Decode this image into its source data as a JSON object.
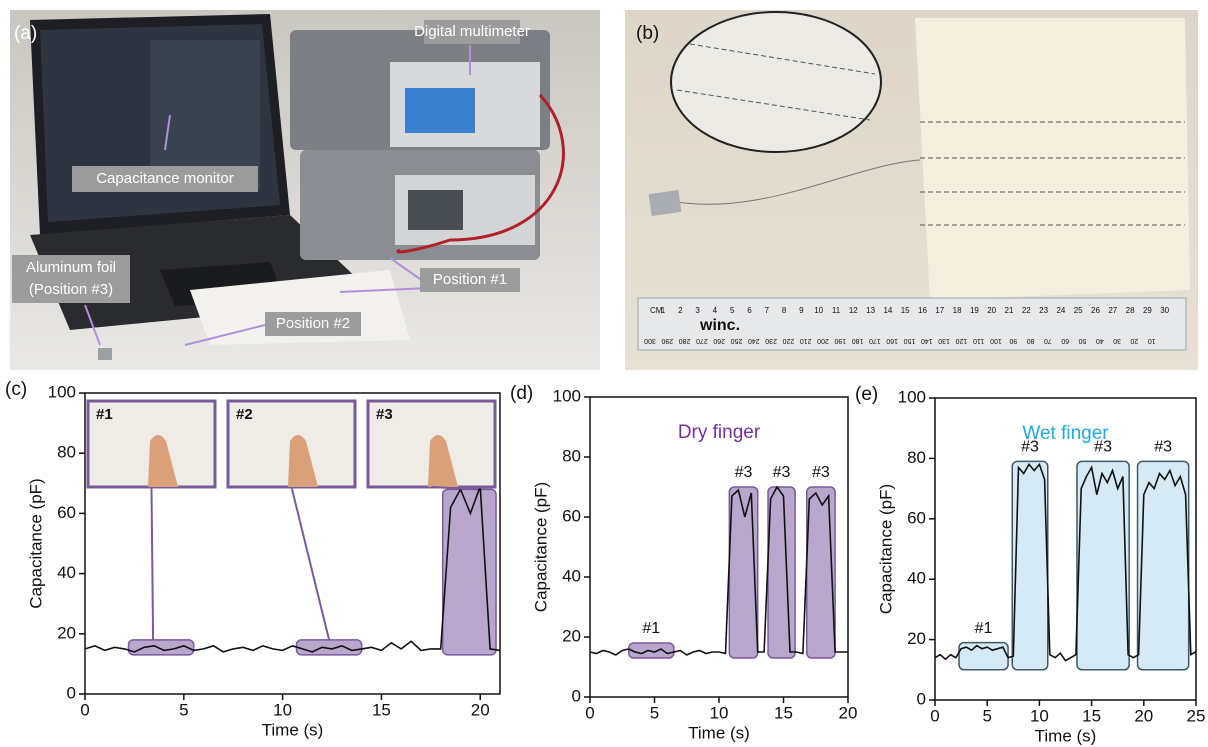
{
  "photos": [
    {
      "panel": "(a)",
      "labels": [
        "Digital multimeter",
        "Capacitance monitor",
        [
          "Aluminum foil",
          "(Position #3)"
        ],
        "Position #1",
        "Position #2"
      ]
    },
    {
      "panel": "(b)",
      "ruler": {
        "brand": "winc.",
        "cm_label": "CM",
        "cm": [
          1,
          2,
          3,
          4,
          5,
          6,
          7,
          8,
          9,
          10,
          11,
          12,
          13,
          14,
          15,
          16,
          17,
          18,
          19,
          20,
          21,
          22,
          23,
          24,
          25,
          26,
          27,
          28,
          29,
          30
        ],
        "mm": [
          300,
          290,
          280,
          270,
          260,
          250,
          240,
          230,
          220,
          210,
          200,
          190,
          180,
          170,
          160,
          150,
          140,
          130,
          120,
          110,
          100,
          90,
          80,
          70,
          60,
          50,
          40,
          30,
          20,
          10
        ]
      }
    }
  ],
  "chart_data": [
    {
      "type": "line",
      "panel": "(c)",
      "x_label": "Time (s)",
      "y_label": "Capacitance (pF)",
      "color": "#111111",
      "region_color": "#b9a6cc",
      "region_stroke": "#7b5a9c",
      "xlim": [
        0,
        21
      ],
      "xticks": [
        0,
        5,
        10,
        15,
        20
      ],
      "ylim": [
        0,
        100
      ],
      "yticks": [
        0,
        20,
        40,
        60,
        80,
        100
      ],
      "x": [
        0,
        0.5,
        1,
        1.5,
        2,
        2.5,
        3,
        3.5,
        4,
        4.5,
        5,
        5.5,
        6,
        6.5,
        7,
        7.5,
        8,
        8.5,
        9,
        9.5,
        10,
        10.5,
        11,
        11.5,
        12,
        12.5,
        13,
        13.5,
        14,
        14.5,
        15,
        15.5,
        16,
        16.5,
        17,
        17.5,
        18,
        18.5,
        19,
        19.5,
        20,
        20.5,
        21
      ],
      "values": [
        15,
        16,
        14.5,
        15.5,
        15,
        14,
        15.5,
        16,
        14.5,
        15,
        16,
        14.5,
        15,
        16,
        14,
        15,
        15.5,
        14.5,
        16,
        15,
        14.5,
        16,
        15,
        14,
        15.5,
        15,
        16,
        14.5,
        15,
        15.5,
        14.5,
        17,
        15,
        17.5,
        14.5,
        15,
        15,
        62,
        68,
        60,
        69,
        15,
        14.5
      ],
      "regions": [
        {
          "label": "#1",
          "x": [
            2.2,
            5.5
          ],
          "y": [
            13,
            18
          ]
        },
        {
          "label": "#2",
          "x": [
            10.7,
            14
          ],
          "y": [
            13,
            18
          ]
        },
        {
          "label": "#3",
          "x": [
            18.1,
            20.8
          ],
          "y": [
            13,
            68
          ]
        }
      ]
    },
    {
      "type": "line",
      "panel": "(d)",
      "title": "Dry finger",
      "title_color": "#7030a0",
      "x_label": "Time (s)",
      "y_label": "Capacitance (pF)",
      "color": "#111111",
      "region_color": "#b9a6cc",
      "region_stroke": "#7b5a9c",
      "xlim": [
        0,
        20
      ],
      "xticks": [
        0,
        5,
        10,
        15,
        20
      ],
      "ylim": [
        0,
        100
      ],
      "yticks": [
        0,
        20,
        40,
        60,
        80,
        100
      ],
      "x": [
        0,
        0.5,
        1,
        1.5,
        2,
        2.5,
        3,
        3.5,
        4,
        4.5,
        5,
        5.5,
        6,
        6.5,
        7,
        7.5,
        8,
        8.5,
        9,
        9.5,
        10,
        10.5,
        11,
        11.5,
        12,
        12.5,
        13,
        13.5,
        14,
        14.5,
        15,
        15.5,
        16,
        16.5,
        17,
        17.5,
        18,
        18.5,
        19,
        19.5,
        20
      ],
      "values": [
        15,
        14.5,
        15.5,
        15,
        14,
        15.5,
        16,
        15,
        14.5,
        15.5,
        15,
        16,
        14.5,
        15,
        15.5,
        14,
        15,
        15.5,
        14.5,
        15,
        15,
        14.5,
        67,
        69,
        60,
        68,
        15,
        15,
        66,
        70,
        67,
        15,
        15,
        14.5,
        66,
        68,
        64,
        67,
        15,
        15,
        15
      ],
      "regions": [
        {
          "label": "#1",
          "x": [
            3,
            6.5
          ],
          "y": [
            13,
            18
          ]
        },
        {
          "label": "#3",
          "x": [
            10.8,
            13
          ],
          "y": [
            13,
            70
          ]
        },
        {
          "label": "#3",
          "x": [
            13.8,
            15.9
          ],
          "y": [
            13,
            70
          ]
        },
        {
          "label": "#3",
          "x": [
            16.8,
            19
          ],
          "y": [
            13,
            70
          ]
        }
      ]
    },
    {
      "type": "line",
      "panel": "(e)",
      "title": "Wet finger",
      "title_color": "#1fa9e0",
      "x_label": "Time (s)",
      "y_label": "Capacitance (pF)",
      "color": "#111111",
      "region_color": "#d6eaf6",
      "region_stroke": "#3f5866",
      "xlim": [
        0,
        25
      ],
      "xticks": [
        0,
        5,
        10,
        15,
        20,
        25
      ],
      "ylim": [
        0,
        100
      ],
      "yticks": [
        0,
        20,
        40,
        60,
        80,
        100
      ],
      "x": [
        0,
        0.5,
        1,
        1.5,
        2,
        2.5,
        3,
        3.5,
        4,
        4.5,
        5,
        5.5,
        6,
        6.5,
        7,
        7.5,
        8,
        8.5,
        9,
        9.5,
        10,
        10.5,
        11,
        11.5,
        12,
        12.5,
        13,
        13.5,
        14,
        14.5,
        15,
        15.5,
        16,
        16.5,
        17,
        17.5,
        18,
        18.5,
        19,
        19.5,
        20,
        20.5,
        21,
        21.5,
        22,
        22.5,
        23,
        23.5,
        24,
        24.5,
        25
      ],
      "values": [
        14,
        15,
        13.5,
        15,
        14,
        17,
        17.5,
        16.5,
        18,
        17,
        17.5,
        16.5,
        17,
        17.5,
        14,
        14.5,
        77,
        75,
        78,
        76,
        78,
        73,
        15,
        14,
        15.5,
        13,
        14,
        15,
        70,
        74,
        77,
        68,
        75,
        72,
        76,
        70,
        74,
        15,
        14,
        15,
        68,
        72,
        70,
        75,
        73,
        76,
        71,
        74,
        68,
        15,
        16
      ],
      "regions": [
        {
          "label": "#1",
          "x": [
            2.3,
            7
          ],
          "y": [
            10,
            19
          ]
        },
        {
          "label": "#3",
          "x": [
            7.4,
            10.8
          ],
          "y": [
            10,
            79
          ]
        },
        {
          "label": "#3",
          "x": [
            13.6,
            18.6
          ],
          "y": [
            10,
            79
          ]
        },
        {
          "label": "#3",
          "x": [
            19.4,
            24.3
          ],
          "y": [
            10,
            79
          ]
        }
      ]
    }
  ]
}
